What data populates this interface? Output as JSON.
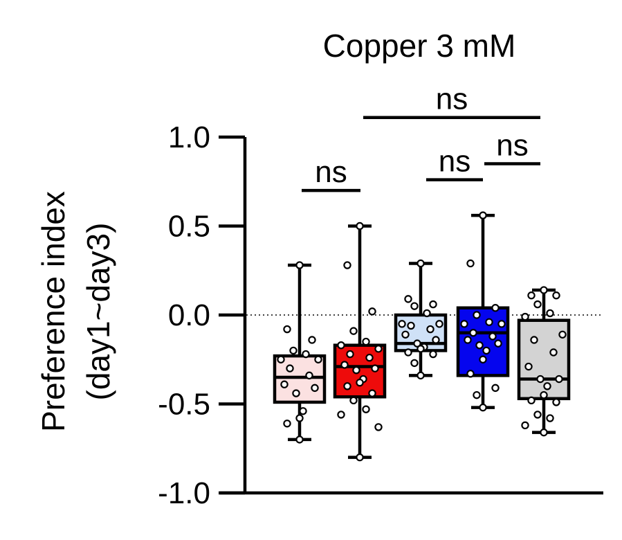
{
  "chart_data": {
    "type": "boxplot",
    "title": "Copper 3 mM",
    "ylabel_lines": [
      "Preference index",
      "(day1~day3)"
    ],
    "ylim": [
      -1.0,
      1.0
    ],
    "yticks": [
      1.0,
      0.5,
      0.0,
      -0.5,
      -1.0
    ],
    "ytick_labels": [
      "1.0",
      "0.5",
      "0.0",
      "-0.5",
      "-1.0"
    ],
    "reference_line": 0.0,
    "groups": [
      {
        "color": "#fbe1e1",
        "whisker_low": -0.7,
        "q1": -0.49,
        "median": -0.35,
        "q3": -0.23,
        "whisker_high": 0.28,
        "points": [
          0.28,
          -0.08,
          -0.14,
          -0.2,
          -0.22,
          -0.25,
          -0.25,
          -0.3,
          -0.34,
          -0.39,
          -0.41,
          -0.44,
          -0.54,
          -0.58,
          -0.61,
          -0.7
        ]
      },
      {
        "color": "#ee0b0b",
        "whisker_low": -0.8,
        "q1": -0.46,
        "median": -0.29,
        "q3": -0.17,
        "whisker_high": 0.5,
        "points": [
          0.5,
          0.28,
          0.02,
          -0.09,
          -0.15,
          -0.17,
          -0.19,
          -0.22,
          -0.24,
          -0.28,
          -0.3,
          -0.31,
          -0.36,
          -0.38,
          -0.4,
          -0.44,
          -0.48,
          -0.53,
          -0.56,
          -0.63,
          -0.8
        ]
      },
      {
        "color": "#cfe1f7",
        "whisker_low": -0.34,
        "q1": -0.2,
        "median": -0.16,
        "q3": 0.0,
        "whisker_high": 0.29,
        "points": [
          0.29,
          0.09,
          0.06,
          0.05,
          0.01,
          -0.05,
          -0.05,
          -0.06,
          -0.08,
          -0.11,
          -0.14,
          -0.16,
          -0.18,
          -0.19,
          -0.21,
          -0.22,
          -0.27,
          -0.34
        ]
      },
      {
        "color": "#0505ee",
        "whisker_low": -0.52,
        "q1": -0.34,
        "median": -0.1,
        "q3": 0.04,
        "whisker_high": 0.56,
        "points": [
          0.56,
          0.29,
          0.04,
          0.0,
          -0.04,
          -0.05,
          -0.05,
          -0.1,
          -0.12,
          -0.14,
          -0.16,
          -0.17,
          -0.2,
          -0.25,
          -0.33,
          -0.41,
          -0.45,
          -0.52
        ]
      },
      {
        "color": "#d3d3d3",
        "whisker_low": -0.66,
        "q1": -0.47,
        "median": -0.36,
        "q3": -0.03,
        "whisker_high": 0.14,
        "points": [
          0.14,
          0.11,
          0.11,
          0.06,
          0.01,
          -0.01,
          -0.11,
          -0.14,
          -0.21,
          -0.29,
          -0.36,
          -0.36,
          -0.4,
          -0.45,
          -0.48,
          -0.49,
          -0.56,
          -0.58,
          -0.62,
          -0.66
        ]
      }
    ],
    "significance": [
      {
        "from": 0,
        "to": 1,
        "label": "ns",
        "y": 0.7
      },
      {
        "from": 2,
        "to": 3,
        "label": "ns",
        "y": 0.76
      },
      {
        "from": 3,
        "to": 4,
        "label": "ns",
        "y": 0.85
      },
      {
        "from": 1,
        "to": 4,
        "label": "ns",
        "y": 1.11
      }
    ]
  }
}
